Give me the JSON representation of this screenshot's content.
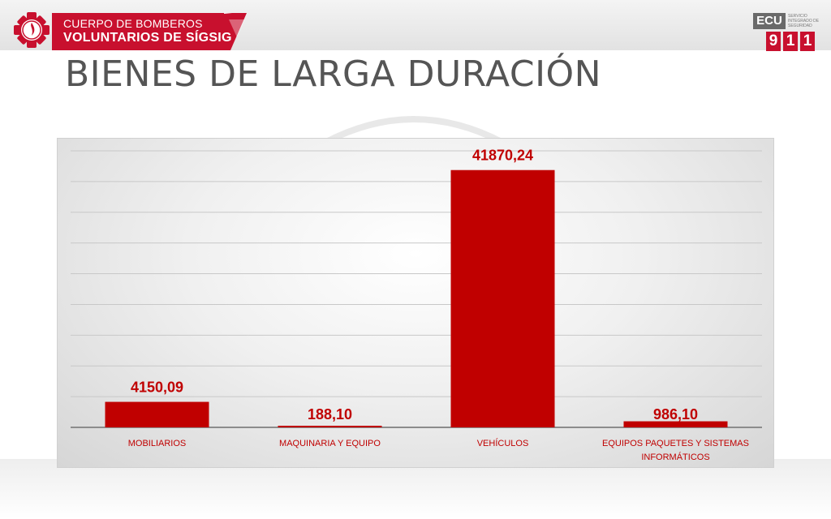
{
  "header": {
    "org_line1": "CUERPO DE BOMBEROS",
    "org_line2": "VOLUNTARIOS DE SÍGSIG",
    "emblem_icon": "fire-department-emblem-icon",
    "ecu_label": "ECU",
    "ecu_sub": "SERVICIO INTEGRADO DE SEGURIDAD",
    "ecu_digits": [
      "9",
      "1",
      "1"
    ]
  },
  "page": {
    "title": "BIENES DE LARGA DURACIÓN"
  },
  "colors": {
    "bar": "#c00000",
    "label": "#c00000",
    "category": "#c00000",
    "brand_red": "#c8102e"
  },
  "chart_data": {
    "type": "bar",
    "categories": [
      "MOBILIARIOS",
      "MAQUINARIA Y EQUIPO",
      "VEHÍCULOS",
      "EQUIPOS PAQUETES Y SISTEMAS INFORMÁTICOS"
    ],
    "category_lines": [
      [
        "MOBILIARIOS"
      ],
      [
        "MAQUINARIA Y EQUIPO"
      ],
      [
        "VEHÍCULOS"
      ],
      [
        "EQUIPOS PAQUETES Y SISTEMAS",
        "INFORMÁTICOS"
      ]
    ],
    "values": [
      4150.09,
      188.1,
      41870.24,
      986.1
    ],
    "value_labels": [
      "4150,09",
      "188,10",
      "41870,24",
      "986,10"
    ],
    "title": "",
    "xlabel": "",
    "ylabel": "",
    "ylim": [
      0,
      45000
    ],
    "grid": true,
    "legend": "none"
  }
}
